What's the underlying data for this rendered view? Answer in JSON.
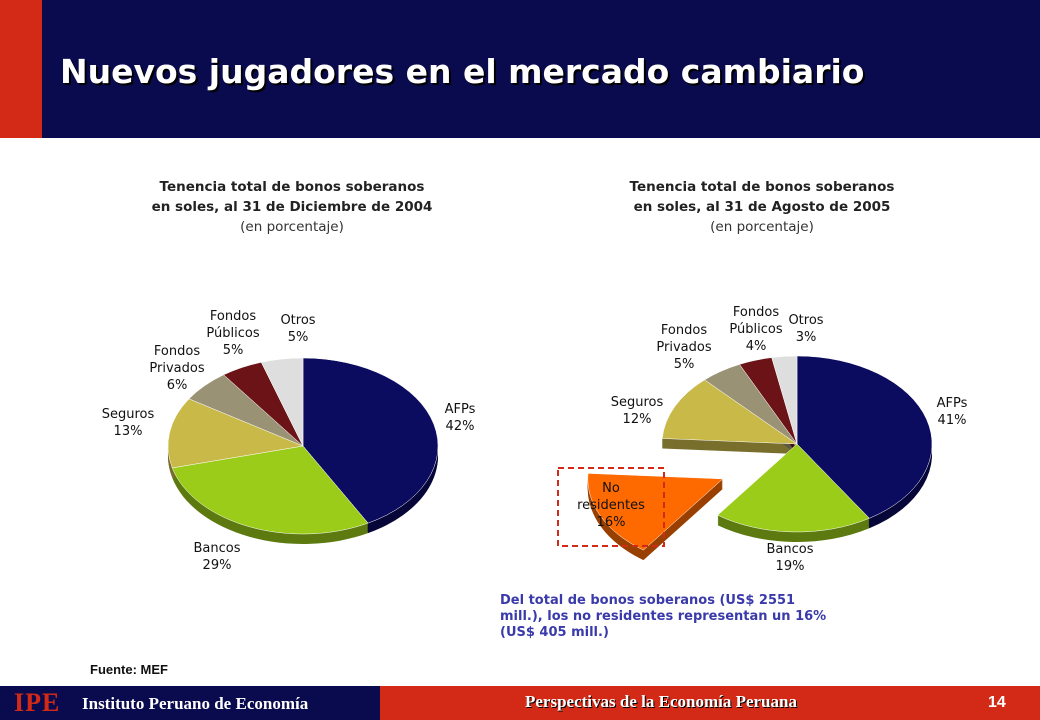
{
  "title": "Nuevos jugadores en el mercado cambiario",
  "chart_data": [
    {
      "type": "pie",
      "title_line1": "Tenencia total de bonos soberanos",
      "title_line2": "en soles, al 31 de Diciembre de 2004",
      "subtitle": "(en porcentaje)",
      "slices": [
        {
          "label": "AFPs",
          "value": 42,
          "color": "#0b0b5f"
        },
        {
          "label": "Bancos",
          "value": 29,
          "color": "#9bcc1a"
        },
        {
          "label": "Seguros",
          "value": 13,
          "color": "#c9b949"
        },
        {
          "label": "Fondos Privados",
          "value": 6,
          "color": "#9a9275"
        },
        {
          "label": "Fondos Públicos",
          "value": 5,
          "color": "#6b1316"
        },
        {
          "label": "Otros",
          "value": 5,
          "color": "#dedede"
        }
      ],
      "labels": [
        {
          "lines": [
            "AFPs",
            "42%"
          ]
        },
        {
          "lines": [
            "Bancos",
            "29%"
          ]
        },
        {
          "lines": [
            "Seguros",
            "13%"
          ]
        },
        {
          "lines": [
            "Fondos",
            "Privados",
            "6%"
          ]
        },
        {
          "lines": [
            "Fondos",
            "Públicos",
            "5%"
          ]
        },
        {
          "lines": [
            "Otros",
            "5%"
          ]
        }
      ]
    },
    {
      "type": "pie",
      "title_line1": "Tenencia total de bonos soberanos",
      "title_line2": "en soles, al 31 de Agosto de 2005",
      "subtitle": "(en porcentaje)",
      "slices": [
        {
          "label": "AFPs",
          "value": 41,
          "color": "#0b0b5f"
        },
        {
          "label": "Bancos",
          "value": 19,
          "color": "#9bcc1a"
        },
        {
          "label": "No residentes",
          "value": 16,
          "color": "#ff6a00",
          "exploded": true
        },
        {
          "label": "Seguros",
          "value": 12,
          "color": "#c9b949"
        },
        {
          "label": "Fondos Privados",
          "value": 5,
          "color": "#9a9275"
        },
        {
          "label": "Fondos Públicos",
          "value": 4,
          "color": "#6b1316"
        },
        {
          "label": "Otros",
          "value": 3,
          "color": "#dedede"
        }
      ],
      "labels": [
        {
          "lines": [
            "AFPs",
            "41%"
          ]
        },
        {
          "lines": [
            "Bancos",
            "19%"
          ]
        },
        {
          "lines": [
            "No",
            "residentes",
            "16%"
          ]
        },
        {
          "lines": [
            "Seguros",
            "12%"
          ]
        },
        {
          "lines": [
            "Fondos",
            "Privados",
            "5%"
          ]
        },
        {
          "lines": [
            "Fondos",
            "Públicos",
            "4%"
          ]
        },
        {
          "lines": [
            "Otros",
            "3%"
          ]
        }
      ]
    }
  ],
  "note": "Del total de bonos soberanos (US$ 2551 mill.), los no residentes representan un 16% (US$ 405 mill.)",
  "source": "Fuente: MEF",
  "footer": {
    "logo": "IPE",
    "institute": "Instituto Peruano de Economía",
    "center": "Perspectivas de la Economía Peruana",
    "page_number": "14"
  }
}
